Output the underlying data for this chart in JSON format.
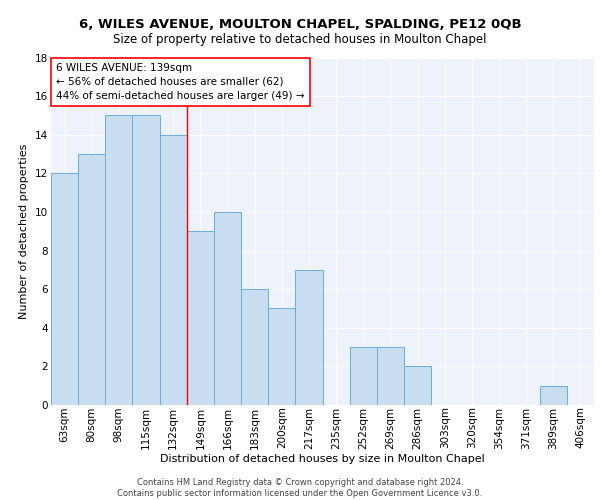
{
  "title1": "6, WILES AVENUE, MOULTON CHAPEL, SPALDING, PE12 0QB",
  "title2": "Size of property relative to detached houses in Moulton Chapel",
  "xlabel": "Distribution of detached houses by size in Moulton Chapel",
  "ylabel": "Number of detached properties",
  "categories": [
    "63sqm",
    "80sqm",
    "98sqm",
    "115sqm",
    "132sqm",
    "149sqm",
    "166sqm",
    "183sqm",
    "200sqm",
    "217sqm",
    "235sqm",
    "252sqm",
    "269sqm",
    "286sqm",
    "303sqm",
    "320sqm",
    "354sqm",
    "371sqm",
    "389sqm",
    "406sqm"
  ],
  "values": [
    12,
    13,
    15,
    15,
    14,
    9,
    10,
    6,
    5,
    7,
    0,
    3,
    3,
    2,
    0,
    0,
    0,
    0,
    1,
    0
  ],
  "bar_color": "#c9ddf0",
  "bar_edge_color": "#6aaed6",
  "ylim": [
    0,
    18
  ],
  "yticks": [
    0,
    2,
    4,
    6,
    8,
    10,
    12,
    14,
    16,
    18
  ],
  "red_line_x": 4.5,
  "annotation_line1": "6 WILES AVENUE: 139sqm",
  "annotation_line2": "← 56% of detached houses are smaller (62)",
  "annotation_line3": "44% of semi-detached houses are larger (49) →",
  "footer_text": "Contains HM Land Registry data © Crown copyright and database right 2024.\nContains public sector information licensed under the Open Government Licence v3.0.",
  "background_color": "#edf2fb",
  "grid_color": "#ffffff",
  "title1_fontsize": 9.5,
  "title2_fontsize": 8.5,
  "xlabel_fontsize": 8,
  "ylabel_fontsize": 8,
  "tick_fontsize": 7.5,
  "annot_fontsize": 7.5,
  "footer_fontsize": 6
}
